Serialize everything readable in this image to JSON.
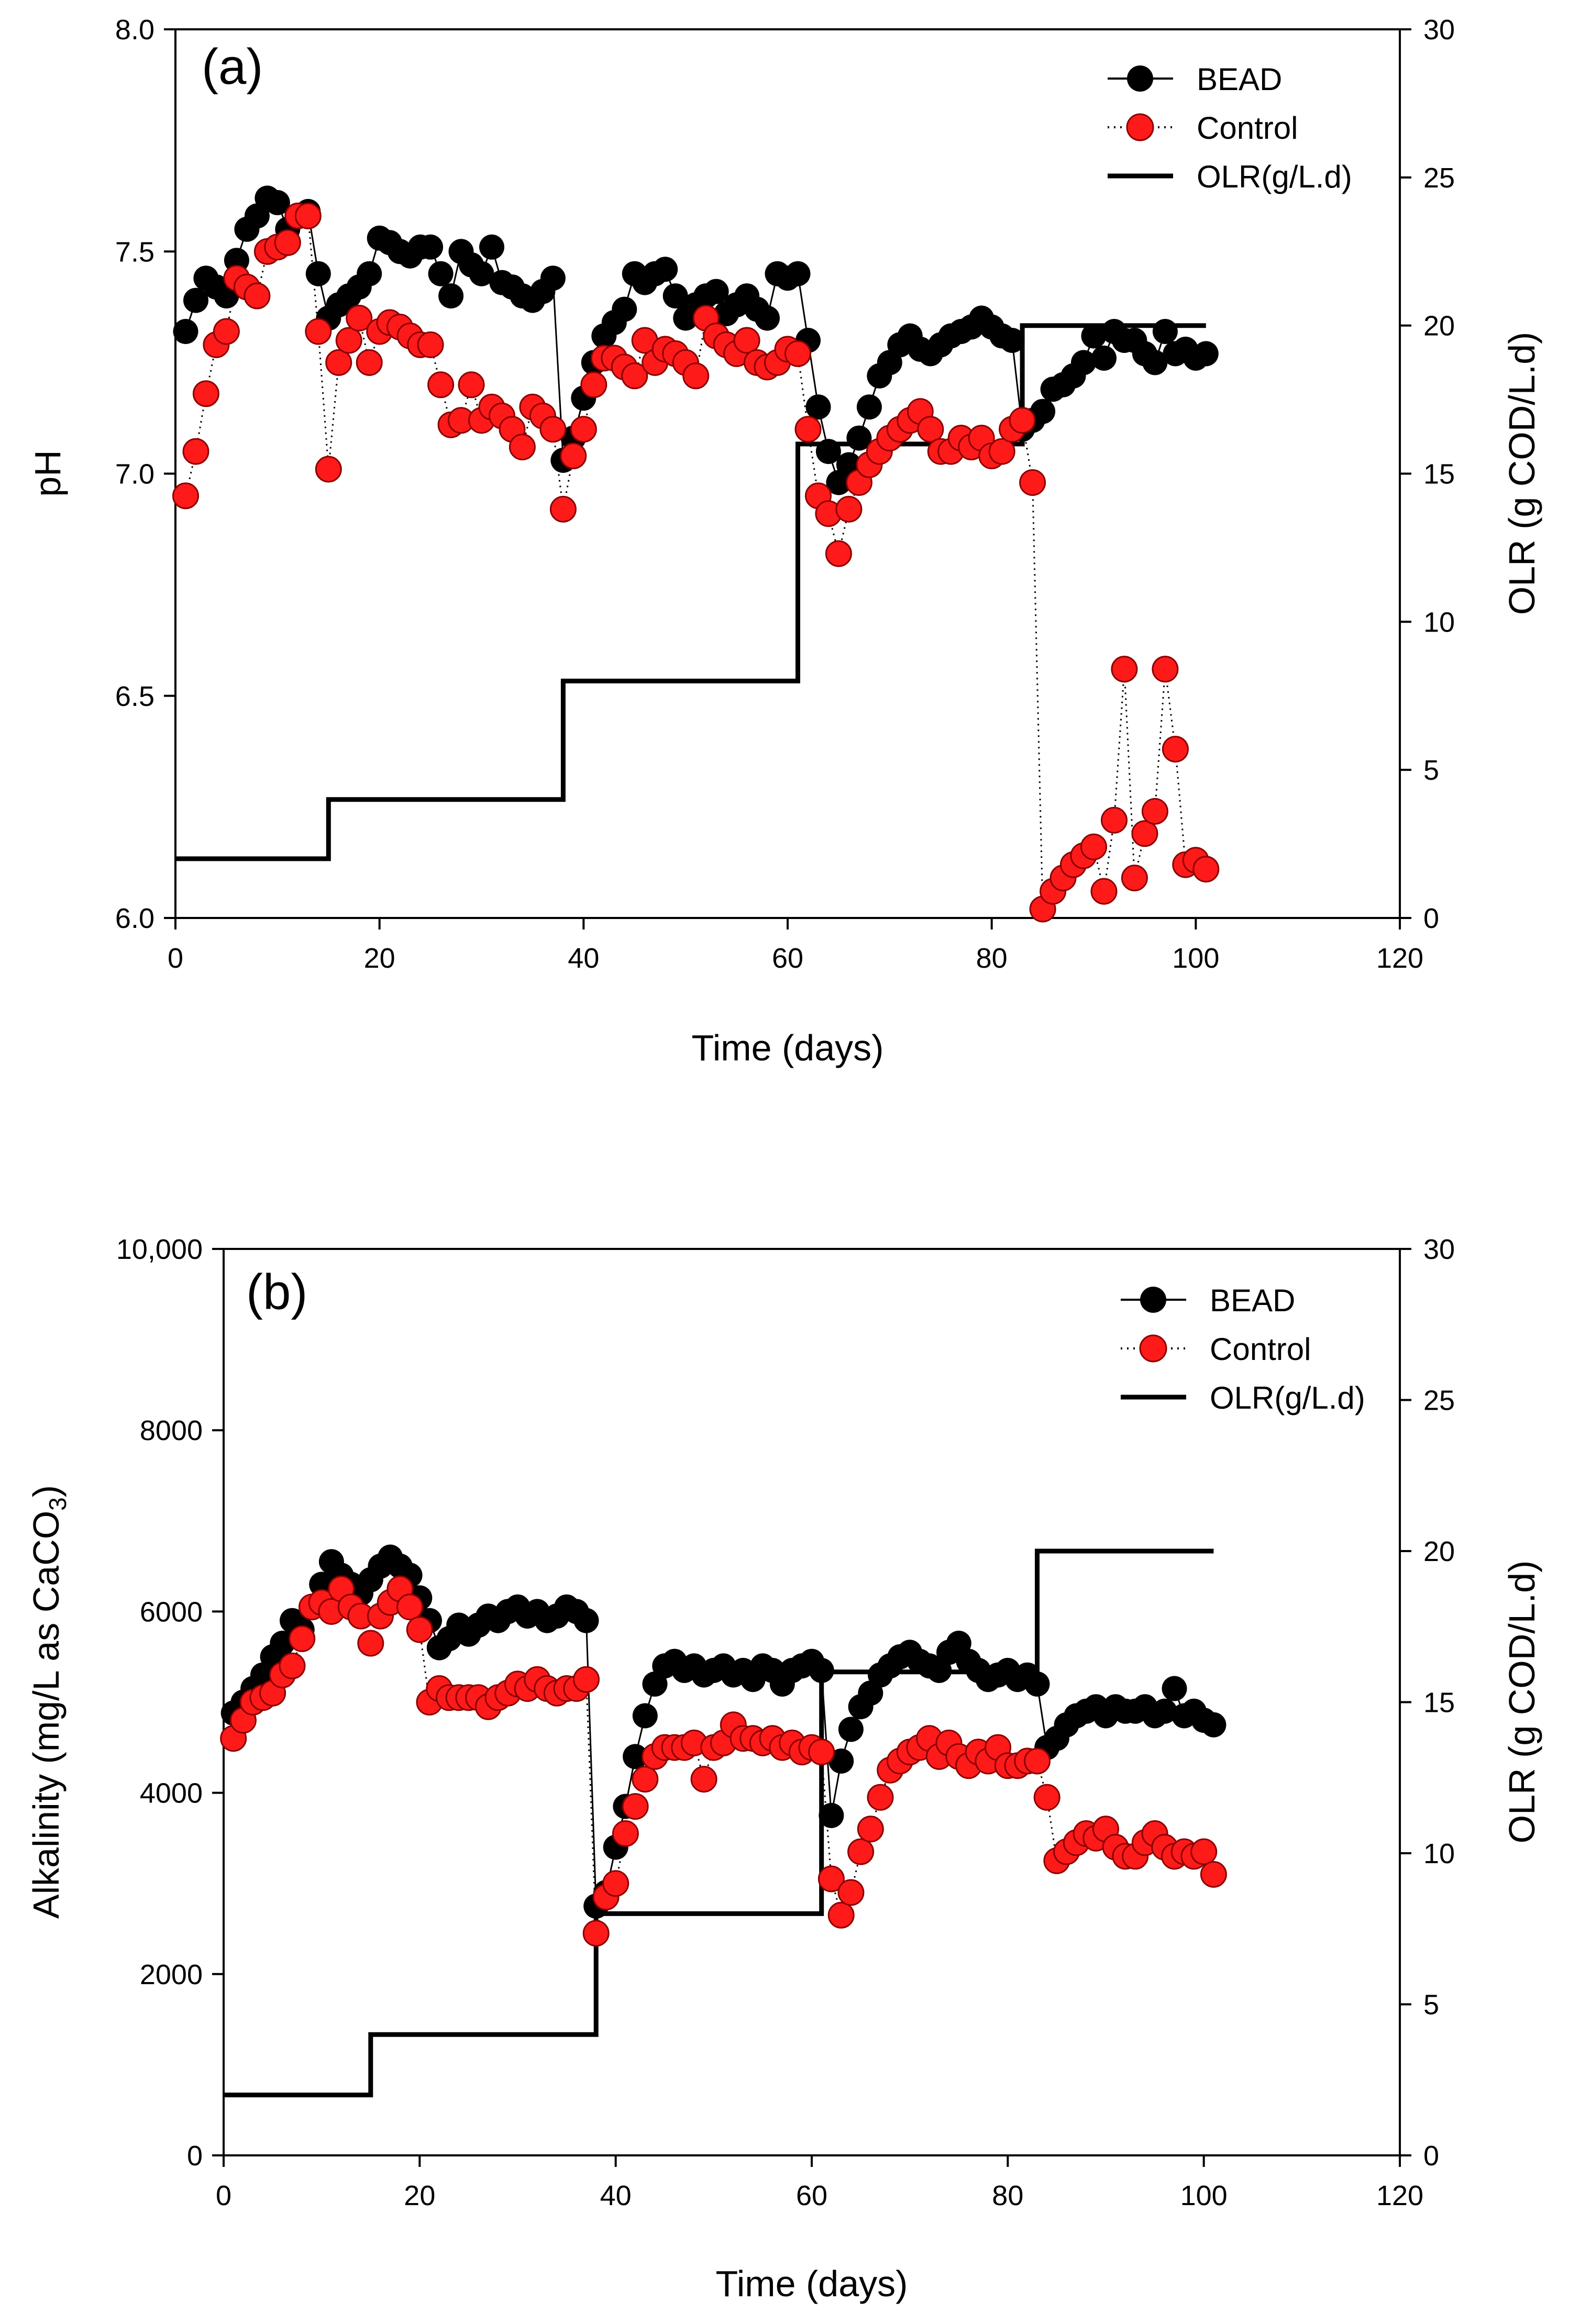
{
  "chart_data": [
    {
      "type": "scatter",
      "panel": "(a)",
      "xlabel": "Time (days)",
      "ylabel": "pH",
      "y2label": "OLR (g COD/L.d)",
      "xlim": [
        0,
        120
      ],
      "ylim": [
        6.0,
        8.0
      ],
      "y2lim": [
        0,
        30
      ],
      "xticks": [
        "0",
        "20",
        "40",
        "60",
        "80",
        "100",
        "120"
      ],
      "yticks": [
        "6.0",
        "6.5",
        "7.0",
        "7.5",
        "8.0"
      ],
      "y2ticks": [
        "0",
        "5",
        "10",
        "15",
        "20",
        "25",
        "30"
      ],
      "legend_position": "top-right",
      "series": [
        {
          "name": "BEAD",
          "style": "solid-line-black-markers",
          "color": "#000000",
          "x": [
            1,
            2,
            3,
            4,
            5,
            6,
            7,
            8,
            9,
            10,
            11,
            12,
            13,
            14,
            15,
            16,
            17,
            18,
            19,
            20,
            21,
            22,
            23,
            24,
            25,
            26,
            27,
            28,
            29,
            30,
            31,
            32,
            33,
            34,
            35,
            36,
            37,
            38,
            39,
            40,
            41,
            42,
            43,
            44,
            45,
            46,
            47,
            48,
            49,
            50,
            51,
            52,
            53,
            54,
            55,
            56,
            57,
            58,
            59,
            60,
            61,
            62,
            63,
            64,
            65,
            66,
            67,
            68,
            69,
            70,
            71,
            72,
            73,
            74,
            75,
            76,
            77,
            78,
            79,
            80,
            81,
            82,
            83,
            84,
            85,
            86,
            87,
            88,
            89,
            90,
            91,
            92,
            93,
            94,
            95,
            96,
            97,
            98,
            99,
            100,
            101
          ],
          "values": [
            7.32,
            7.39,
            7.44,
            7.42,
            7.4,
            7.48,
            7.55,
            7.58,
            7.62,
            7.61,
            7.55,
            7.58,
            7.59,
            7.45,
            7.35,
            7.38,
            7.4,
            7.42,
            7.45,
            7.53,
            7.52,
            7.5,
            7.49,
            7.51,
            7.51,
            7.45,
            7.4,
            7.5,
            7.47,
            7.45,
            7.51,
            7.43,
            7.42,
            7.4,
            7.39,
            7.41,
            7.44,
            7.03,
            7.08,
            7.17,
            7.25,
            7.31,
            7.34,
            7.37,
            7.45,
            7.43,
            7.45,
            7.46,
            7.4,
            7.35,
            7.38,
            7.4,
            7.41,
            7.36,
            7.38,
            7.4,
            7.37,
            7.35,
            7.45,
            7.44,
            7.45,
            7.3,
            7.15,
            7.05,
            6.98,
            7.02,
            7.08,
            7.15,
            7.22,
            7.25,
            7.29,
            7.31,
            7.28,
            7.27,
            7.29,
            7.31,
            7.32,
            7.33,
            7.35,
            7.33,
            7.31,
            7.3,
            7.1,
            7.12,
            7.14,
            7.19,
            7.2,
            7.22,
            7.25,
            7.31,
            7.26,
            7.32,
            7.3,
            7.3,
            7.27,
            7.25,
            7.32,
            7.27,
            7.28,
            7.26,
            7.27
          ]
        },
        {
          "name": "Control",
          "style": "dotted-line-red-markers",
          "color": "#ff1a1a",
          "x": [
            1,
            2,
            3,
            4,
            5,
            6,
            7,
            8,
            9,
            10,
            11,
            12,
            13,
            14,
            15,
            16,
            17,
            18,
            19,
            20,
            21,
            22,
            23,
            24,
            25,
            26,
            27,
            28,
            29,
            30,
            31,
            32,
            33,
            34,
            35,
            36,
            37,
            38,
            39,
            40,
            41,
            42,
            43,
            44,
            45,
            46,
            47,
            48,
            49,
            50,
            51,
            52,
            53,
            54,
            55,
            56,
            57,
            58,
            59,
            60,
            61,
            62,
            63,
            64,
            65,
            66,
            67,
            68,
            69,
            70,
            71,
            72,
            73,
            74,
            75,
            76,
            77,
            78,
            79,
            80,
            81,
            82,
            83,
            84,
            85,
            86,
            87,
            88,
            89,
            90,
            91,
            92,
            93,
            94,
            95,
            96,
            97,
            98,
            99,
            100,
            101
          ],
          "values": [
            6.95,
            7.05,
            7.18,
            7.29,
            7.32,
            7.44,
            7.42,
            7.4,
            7.5,
            7.51,
            7.52,
            7.58,
            7.58,
            7.32,
            7.01,
            7.25,
            7.3,
            7.35,
            7.25,
            7.32,
            7.34,
            7.33,
            7.31,
            7.29,
            7.29,
            7.2,
            7.11,
            7.12,
            7.2,
            7.12,
            7.15,
            7.13,
            7.1,
            7.06,
            7.15,
            7.13,
            7.1,
            6.92,
            7.04,
            7.1,
            7.2,
            7.26,
            7.26,
            7.24,
            7.22,
            7.3,
            7.25,
            7.28,
            7.27,
            7.25,
            7.22,
            7.35,
            7.31,
            7.29,
            7.27,
            7.3,
            7.25,
            7.24,
            7.25,
            7.28,
            7.27,
            7.1,
            6.95,
            6.91,
            6.82,
            6.92,
            6.98,
            7.02,
            7.05,
            7.08,
            7.1,
            7.12,
            7.14,
            7.1,
            7.05,
            7.05,
            7.08,
            7.06,
            7.08,
            7.04,
            7.05,
            7.1,
            7.12,
            6.98,
            6.02,
            6.06,
            6.09,
            6.12,
            6.14,
            6.16,
            6.06,
            6.22,
            6.56,
            6.09,
            6.19,
            6.24,
            6.56,
            6.38,
            6.12,
            6.13,
            6.11
          ]
        },
        {
          "name": "OLR(g/L.d)",
          "style": "step-line-black",
          "axis": "right",
          "color": "#000000",
          "x": [
            0,
            15,
            15,
            38,
            38,
            61,
            61,
            83,
            83,
            101
          ],
          "values": [
            2,
            2,
            4,
            4,
            8,
            8,
            16,
            16,
            20,
            20
          ]
        }
      ]
    },
    {
      "type": "scatter",
      "panel": "(b)",
      "xlabel": "Time (days)",
      "ylabel": "Alkalinity (mg/L as CaCO",
      "ylabel_subscript": "3",
      "ylabel_close": ")",
      "y2label": "OLR (g COD/L.d)",
      "xlim": [
        0,
        120
      ],
      "ylim": [
        0,
        10000
      ],
      "y2lim": [
        0,
        30
      ],
      "xticks": [
        "0",
        "20",
        "40",
        "60",
        "80",
        "100",
        "120"
      ],
      "yticks": [
        "0",
        "2000",
        "4000",
        "6000",
        "8000",
        "10,000"
      ],
      "y2ticks": [
        "0",
        "5",
        "10",
        "15",
        "20",
        "25",
        "30"
      ],
      "legend_position": "top-right",
      "series": [
        {
          "name": "BEAD",
          "style": "solid-line-black-markers",
          "color": "#000000",
          "x": [
            1,
            2,
            3,
            4,
            5,
            6,
            7,
            8,
            9,
            10,
            11,
            12,
            13,
            14,
            15,
            16,
            17,
            18,
            19,
            20,
            21,
            22,
            23,
            24,
            25,
            26,
            27,
            28,
            29,
            30,
            31,
            32,
            33,
            34,
            35,
            36,
            37,
            38,
            39,
            40,
            41,
            42,
            43,
            44,
            45,
            46,
            47,
            48,
            49,
            50,
            51,
            52,
            53,
            54,
            55,
            56,
            57,
            58,
            59,
            60,
            61,
            62,
            63,
            64,
            65,
            66,
            67,
            68,
            69,
            70,
            71,
            72,
            73,
            74,
            75,
            76,
            77,
            78,
            79,
            80,
            81,
            82,
            83,
            84,
            85,
            86,
            87,
            88,
            89,
            90,
            91,
            92,
            93,
            94,
            95,
            96,
            97,
            98,
            99,
            100,
            101
          ],
          "values": [
            4880,
            5000,
            5150,
            5300,
            5500,
            5650,
            5900,
            5800,
            6050,
            6300,
            6550,
            6400,
            6300,
            6200,
            6350,
            6500,
            6600,
            6500,
            6400,
            6150,
            5900,
            5600,
            5700,
            5850,
            5750,
            5850,
            5950,
            5900,
            6000,
            6050,
            5950,
            6000,
            5900,
            5950,
            6050,
            6000,
            5900,
            2750,
            2900,
            3400,
            3850,
            4400,
            4850,
            5200,
            5400,
            5450,
            5350,
            5400,
            5300,
            5350,
            5400,
            5300,
            5350,
            5250,
            5400,
            5350,
            5200,
            5350,
            5400,
            5450,
            5350,
            3750,
            4350,
            4700,
            4950,
            5100,
            5300,
            5400,
            5500,
            5550,
            5450,
            5400,
            5350,
            5550,
            5650,
            5450,
            5350,
            5250,
            5300,
            5350,
            5250,
            5300,
            5200,
            4500,
            4600,
            4750,
            4850,
            4900,
            4950,
            4850,
            4950,
            4900,
            4900,
            4950,
            4850,
            4900,
            5150,
            4850,
            4900,
            4800,
            4750
          ]
        },
        {
          "name": "Control",
          "style": "dotted-line-red-markers",
          "color": "#ff1a1a",
          "x": [
            1,
            2,
            3,
            4,
            5,
            6,
            7,
            8,
            9,
            10,
            11,
            12,
            13,
            14,
            15,
            16,
            17,
            18,
            19,
            20,
            21,
            22,
            23,
            24,
            25,
            26,
            27,
            28,
            29,
            30,
            31,
            32,
            33,
            34,
            35,
            36,
            37,
            38,
            39,
            40,
            41,
            42,
            43,
            44,
            45,
            46,
            47,
            48,
            49,
            50,
            51,
            52,
            53,
            54,
            55,
            56,
            57,
            58,
            59,
            60,
            61,
            62,
            63,
            64,
            65,
            66,
            67,
            68,
            69,
            70,
            71,
            72,
            73,
            74,
            75,
            76,
            77,
            78,
            79,
            80,
            81,
            82,
            83,
            84,
            85,
            86,
            87,
            88,
            89,
            90,
            91,
            92,
            93,
            94,
            95,
            96,
            97,
            98,
            99,
            100,
            101
          ],
          "values": [
            4600,
            4800,
            5000,
            5050,
            5100,
            5300,
            5400,
            5700,
            6050,
            6100,
            6000,
            6250,
            6050,
            5950,
            5650,
            5950,
            6100,
            6250,
            6050,
            5800,
            5000,
            5150,
            5050,
            5050,
            5050,
            5050,
            4950,
            5050,
            5100,
            5200,
            5150,
            5250,
            5150,
            5100,
            5150,
            5150,
            5250,
            2450,
            2850,
            3000,
            3550,
            3850,
            4150,
            4400,
            4500,
            4500,
            4500,
            4550,
            4150,
            4500,
            4550,
            4750,
            4600,
            4600,
            4550,
            4600,
            4500,
            4550,
            4450,
            4500,
            4450,
            3050,
            2650,
            2900,
            3350,
            3600,
            3950,
            4250,
            4350,
            4450,
            4500,
            4600,
            4400,
            4550,
            4400,
            4300,
            4450,
            4350,
            4500,
            4300,
            4300,
            4350,
            4350,
            3950,
            3250,
            3350,
            3450,
            3550,
            3500,
            3600,
            3400,
            3300,
            3300,
            3450,
            3550,
            3400,
            3300,
            3350,
            3300,
            3350,
            3100
          ]
        },
        {
          "name": "OLR(g/L.d)",
          "style": "step-line-black",
          "axis": "right",
          "color": "#000000",
          "x": [
            0,
            15,
            15,
            38,
            38,
            61,
            61,
            83,
            83,
            101
          ],
          "values": [
            2,
            2,
            4,
            4,
            8,
            8,
            16,
            16,
            20,
            20
          ]
        }
      ]
    }
  ]
}
